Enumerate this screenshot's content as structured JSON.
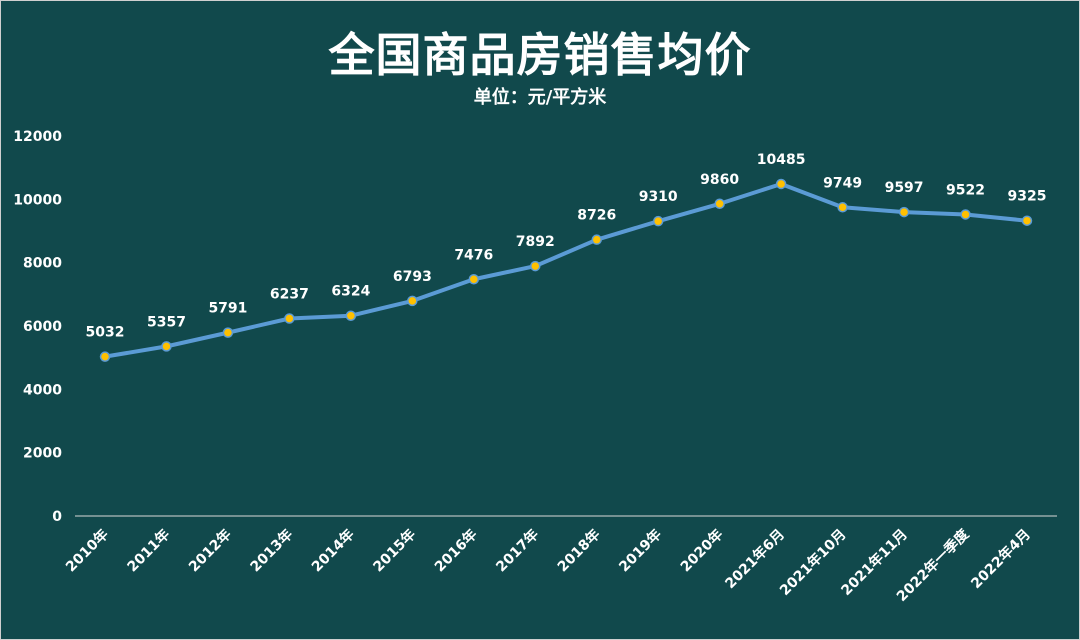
{
  "chart_data": {
    "type": "line",
    "title": "全国商品房销售均价",
    "subtitle": "单位：元/平方米",
    "categories": [
      "2010年",
      "2011年",
      "2012年",
      "2013年",
      "2014年",
      "2015年",
      "2016年",
      "2017年",
      "2018年",
      "2019年",
      "2020年",
      "2021年6月",
      "2021年10月",
      "2021年11月",
      "2022年一季度",
      "2022年4月"
    ],
    "series": [
      {
        "values": [
          5032,
          5357,
          5791,
          6237,
          6324,
          6793,
          7476,
          7892,
          8726,
          9310,
          9860,
          10485,
          9749,
          9597,
          9522,
          9325
        ]
      }
    ],
    "yticks": [
      "0",
      "2000",
      "4000",
      "6000",
      "8000",
      "10000",
      "12000"
    ],
    "ylim": [
      0,
      12000
    ],
    "grid": false,
    "colors": {
      "background": "#11494c",
      "line": "#5b9bd5",
      "marker": "#ffc000",
      "text": "#ffffff"
    }
  }
}
